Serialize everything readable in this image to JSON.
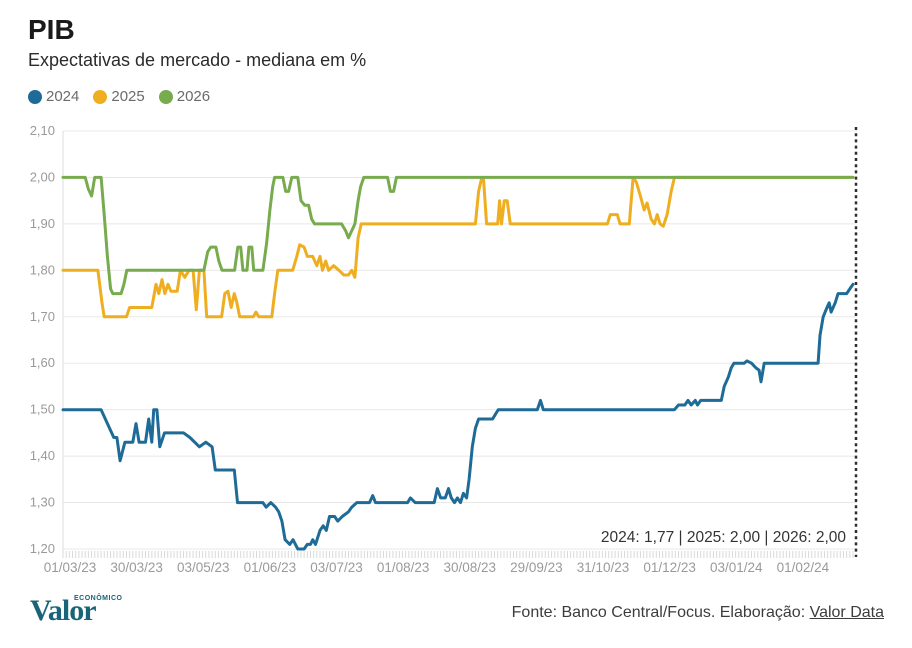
{
  "header": {
    "title": "PIB",
    "subtitle": "Expectativas de mercado - mediana em %"
  },
  "legend": [
    {
      "label": "2024",
      "color": "#1e6b97"
    },
    {
      "label": "2025",
      "color": "#efae1f"
    },
    {
      "label": "2026",
      "color": "#77ab4e"
    }
  ],
  "footer": {
    "logo_text": "Valor",
    "logo_sup": "ECONÔMICO",
    "source_prefix": "Fonte: Banco Central/Focus. Elaboração: ",
    "source_link": "Valor Data"
  },
  "chart_data": {
    "type": "line",
    "title": "PIB",
    "subtitle": "Expectativas de mercado - mediana em %",
    "grid": "horizontal",
    "legend_position": "top-left",
    "annotation": "2024: 1,77 | 2025: 2,00 | 2026: 2,00",
    "end_line": "dotted-vertical-at-last-point",
    "x_axis": {
      "unit": "business-day index from 01/03/23",
      "range_days": [
        0,
        249
      ],
      "tick_days": [
        0,
        21,
        42,
        63,
        84,
        105,
        126,
        147,
        168,
        189,
        210,
        231
      ],
      "tick_labels": [
        "01/03/23",
        "30/03/23",
        "03/05/23",
        "01/06/23",
        "03/07/23",
        "01/08/23",
        "30/08/23",
        "29/09/23",
        "31/10/23",
        "01/12/23",
        "03/01/24",
        "01/02/24"
      ]
    },
    "y_axis": {
      "min": 1.2,
      "max": 2.1,
      "ticks": [
        {
          "label": "2,10",
          "value": 2.1
        },
        {
          "label": "2,00",
          "value": 2.0
        },
        {
          "label": "1,90",
          "value": 1.9
        },
        {
          "label": "1,80",
          "value": 1.8
        },
        {
          "label": "1,70",
          "value": 1.7
        },
        {
          "label": "1,60",
          "value": 1.6
        },
        {
          "label": "1,50",
          "value": 1.5
        },
        {
          "label": "1,40",
          "value": 1.4
        },
        {
          "label": "1,30",
          "value": 1.3
        },
        {
          "label": "1,20",
          "value": 1.2
        }
      ]
    },
    "series": [
      {
        "name": "2024",
        "color": "#1e6b97",
        "final_label": "1,77",
        "points": [
          [
            0,
            1.5
          ],
          [
            12,
            1.5
          ],
          [
            16,
            1.44
          ],
          [
            17,
            1.44
          ],
          [
            18,
            1.39
          ],
          [
            19.5,
            1.43
          ],
          [
            22,
            1.43
          ],
          [
            23,
            1.47
          ],
          [
            24,
            1.43
          ],
          [
            26,
            1.43
          ],
          [
            27,
            1.48
          ],
          [
            28,
            1.43
          ],
          [
            28.6,
            1.5
          ],
          [
            29.6,
            1.5
          ],
          [
            30.5,
            1.42
          ],
          [
            32,
            1.45
          ],
          [
            38,
            1.45
          ],
          [
            40,
            1.44
          ],
          [
            43,
            1.42
          ],
          [
            45,
            1.43
          ],
          [
            47,
            1.42
          ],
          [
            48,
            1.37
          ],
          [
            54,
            1.37
          ],
          [
            55,
            1.3
          ],
          [
            63,
            1.3
          ],
          [
            64,
            1.29
          ],
          [
            65.5,
            1.3
          ],
          [
            67,
            1.29
          ],
          [
            68,
            1.28
          ],
          [
            69,
            1.26
          ],
          [
            70,
            1.22
          ],
          [
            71.5,
            1.21
          ],
          [
            72.5,
            1.22
          ],
          [
            74,
            1.2
          ],
          [
            76,
            1.2
          ],
          [
            77,
            1.21
          ],
          [
            78,
            1.21
          ],
          [
            78.7,
            1.22
          ],
          [
            79.6,
            1.21
          ],
          [
            81,
            1.24
          ],
          [
            82,
            1.25
          ],
          [
            83,
            1.24
          ],
          [
            84,
            1.27
          ],
          [
            85.6,
            1.27
          ],
          [
            86.6,
            1.26
          ],
          [
            88,
            1.27
          ],
          [
            90,
            1.28
          ],
          [
            91,
            1.29
          ],
          [
            92.6,
            1.3
          ],
          [
            96.6,
            1.3
          ],
          [
            97.6,
            1.315
          ],
          [
            98.5,
            1.3
          ],
          [
            108.6,
            1.3
          ],
          [
            109.5,
            1.31
          ],
          [
            111,
            1.3
          ],
          [
            117,
            1.3
          ],
          [
            118,
            1.33
          ],
          [
            119,
            1.31
          ],
          [
            120.5,
            1.31
          ],
          [
            121.5,
            1.33
          ],
          [
            122.4,
            1.31
          ],
          [
            123.4,
            1.3
          ],
          [
            124.3,
            1.31
          ],
          [
            125.3,
            1.3
          ],
          [
            126.2,
            1.32
          ],
          [
            127.2,
            1.31
          ],
          [
            128,
            1.35
          ],
          [
            129,
            1.42
          ],
          [
            130,
            1.46
          ],
          [
            131,
            1.48
          ],
          [
            135.4,
            1.48
          ],
          [
            136.3,
            1.49
          ],
          [
            137.2,
            1.5
          ],
          [
            149.5,
            1.5
          ],
          [
            150.5,
            1.52
          ],
          [
            151.4,
            1.5
          ],
          [
            192.7,
            1.5
          ],
          [
            194,
            1.51
          ],
          [
            196,
            1.51
          ],
          [
            197,
            1.52
          ],
          [
            198,
            1.51
          ],
          [
            199.3,
            1.52
          ],
          [
            200,
            1.51
          ],
          [
            201,
            1.52
          ],
          [
            207.5,
            1.52
          ],
          [
            208.4,
            1.55
          ],
          [
            209.7,
            1.57
          ],
          [
            210.6,
            1.59
          ],
          [
            211.5,
            1.6
          ],
          [
            214.7,
            1.6
          ],
          [
            215.6,
            1.605
          ],
          [
            217,
            1.6
          ],
          [
            218.4,
            1.59
          ],
          [
            219.4,
            1.585
          ],
          [
            220,
            1.56
          ],
          [
            221,
            1.6
          ],
          [
            238,
            1.6
          ],
          [
            238.6,
            1.66
          ],
          [
            239.6,
            1.7
          ],
          [
            240.8,
            1.72
          ],
          [
            241.5,
            1.73
          ],
          [
            242.1,
            1.71
          ],
          [
            243.4,
            1.73
          ],
          [
            244.3,
            1.75
          ],
          [
            247,
            1.75
          ],
          [
            248,
            1.76
          ],
          [
            249,
            1.77
          ]
        ]
      },
      {
        "name": "2025",
        "color": "#efae1f",
        "final_label": "2,00",
        "points": [
          [
            0,
            1.8
          ],
          [
            11,
            1.8
          ],
          [
            12.3,
            1.73
          ],
          [
            13,
            1.7
          ],
          [
            20,
            1.7
          ],
          [
            21,
            1.72
          ],
          [
            28,
            1.72
          ],
          [
            29.3,
            1.77
          ],
          [
            30.2,
            1.75
          ],
          [
            31.2,
            1.78
          ],
          [
            32.1,
            1.75
          ],
          [
            33.1,
            1.77
          ],
          [
            34,
            1.755
          ],
          [
            36,
            1.755
          ],
          [
            37,
            1.8
          ],
          [
            38.4,
            1.785
          ],
          [
            39.7,
            1.8
          ],
          [
            41,
            1.8
          ],
          [
            42,
            1.715
          ],
          [
            43,
            1.8
          ],
          [
            44.4,
            1.8
          ],
          [
            45.3,
            1.7
          ],
          [
            50,
            1.7
          ],
          [
            51,
            1.75
          ],
          [
            52,
            1.755
          ],
          [
            53,
            1.72
          ],
          [
            54,
            1.75
          ],
          [
            54.8,
            1.73
          ],
          [
            55.7,
            1.7
          ],
          [
            60,
            1.7
          ],
          [
            60.8,
            1.71
          ],
          [
            61.7,
            1.7
          ],
          [
            65.8,
            1.7
          ],
          [
            66.7,
            1.75
          ],
          [
            67.7,
            1.8
          ],
          [
            72.4,
            1.8
          ],
          [
            73.7,
            1.83
          ],
          [
            74.6,
            1.855
          ],
          [
            76,
            1.85
          ],
          [
            77,
            1.83
          ],
          [
            78.7,
            1.83
          ],
          [
            80,
            1.81
          ],
          [
            81,
            1.83
          ],
          [
            81.8,
            1.8
          ],
          [
            82.8,
            1.82
          ],
          [
            83.7,
            1.8
          ],
          [
            85.3,
            1.81
          ],
          [
            87,
            1.8
          ],
          [
            88.5,
            1.79
          ],
          [
            90,
            1.79
          ],
          [
            91,
            1.8
          ],
          [
            92,
            1.785
          ],
          [
            93,
            1.87
          ],
          [
            94,
            1.9
          ],
          [
            130,
            1.9
          ],
          [
            131,
            1.97
          ],
          [
            132,
            2.0
          ],
          [
            132.5,
            2.0
          ],
          [
            133.5,
            1.9
          ],
          [
            137,
            1.9
          ],
          [
            137.6,
            1.95
          ],
          [
            138.2,
            1.9
          ],
          [
            139.1,
            1.95
          ],
          [
            140,
            1.95
          ],
          [
            141,
            1.9
          ],
          [
            171.6,
            1.9
          ],
          [
            172.5,
            1.92
          ],
          [
            174.7,
            1.92
          ],
          [
            175.6,
            1.9
          ],
          [
            178.5,
            1.9
          ],
          [
            179.7,
            2.0
          ],
          [
            180.7,
            1.99
          ],
          [
            182,
            1.96
          ],
          [
            183.2,
            1.93
          ],
          [
            184.1,
            1.945
          ],
          [
            185.4,
            1.91
          ],
          [
            186.4,
            1.9
          ],
          [
            187.3,
            1.92
          ],
          [
            188.2,
            1.9
          ],
          [
            189.2,
            1.895
          ],
          [
            190.4,
            1.92
          ],
          [
            191.7,
            1.97
          ],
          [
            192.7,
            2.0
          ],
          [
            249,
            2.0
          ]
        ]
      },
      {
        "name": "2026",
        "color": "#77ab4e",
        "final_label": "2,00",
        "points": [
          [
            0,
            2.0
          ],
          [
            7,
            2.0
          ],
          [
            8,
            1.975
          ],
          [
            9,
            1.96
          ],
          [
            10,
            2.0
          ],
          [
            12,
            2.0
          ],
          [
            13,
            1.92
          ],
          [
            14,
            1.83
          ],
          [
            15,
            1.76
          ],
          [
            15.7,
            1.75
          ],
          [
            18.3,
            1.75
          ],
          [
            19.2,
            1.77
          ],
          [
            20.1,
            1.8
          ],
          [
            44.4,
            1.8
          ],
          [
            45.6,
            1.84
          ],
          [
            46.6,
            1.85
          ],
          [
            48.2,
            1.85
          ],
          [
            49.1,
            1.82
          ],
          [
            50.1,
            1.8
          ],
          [
            54.1,
            1.8
          ],
          [
            55.1,
            1.85
          ],
          [
            56,
            1.85
          ],
          [
            56.7,
            1.8
          ],
          [
            58,
            1.8
          ],
          [
            58.6,
            1.85
          ],
          [
            59.5,
            1.85
          ],
          [
            60.1,
            1.8
          ],
          [
            63,
            1.8
          ],
          [
            64.2,
            1.86
          ],
          [
            65.2,
            1.93
          ],
          [
            66.1,
            1.98
          ],
          [
            66.7,
            2.0
          ],
          [
            69.3,
            2.0
          ],
          [
            70.2,
            1.97
          ],
          [
            71.1,
            1.97
          ],
          [
            72.1,
            2.0
          ],
          [
            74,
            2.0
          ],
          [
            75,
            1.95
          ],
          [
            76.2,
            1.94
          ],
          [
            77.4,
            1.94
          ],
          [
            78.4,
            1.91
          ],
          [
            79.3,
            1.9
          ],
          [
            87.8,
            1.9
          ],
          [
            89.1,
            1.885
          ],
          [
            90,
            1.87
          ],
          [
            91,
            1.885
          ],
          [
            92,
            1.9
          ],
          [
            93,
            1.95
          ],
          [
            93.8,
            1.98
          ],
          [
            94.8,
            2.0
          ],
          [
            102.3,
            2.0
          ],
          [
            103.2,
            1.97
          ],
          [
            104.2,
            1.97
          ],
          [
            105.1,
            2.0
          ],
          [
            249,
            2.0
          ]
        ]
      }
    ]
  }
}
